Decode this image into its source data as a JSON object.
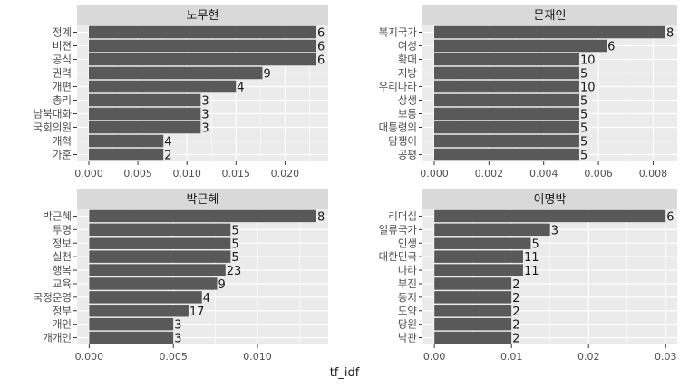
{
  "chart_data": {
    "type": "bar",
    "orientation": "horizontal",
    "xlabel": "tf_idf",
    "colors": {
      "bar": "#595959",
      "panel": "#ebebeb",
      "strip": "#d9d9d9",
      "grid": "#ffffff"
    },
    "facets": [
      {
        "name": "노무현",
        "categories": [
          "정계",
          "비젼",
          "공식",
          "권력",
          "개편",
          "총리",
          "남북대화",
          "국회의원",
          "개혁",
          "가훈"
        ],
        "values": [
          0.0232,
          0.0232,
          0.0232,
          0.0177,
          0.015,
          0.0114,
          0.0114,
          0.0114,
          0.0076,
          0.0076
        ],
        "labels": [
          "6",
          "6",
          "6",
          "9",
          "4",
          "3",
          "3",
          "3",
          "4",
          "2"
        ],
        "xlim": [
          -0.0012,
          0.0244
        ],
        "ticks": [
          "0.000",
          "0.005",
          "0.010",
          "0.015",
          "0.020"
        ],
        "tick_values": [
          0,
          0.005,
          0.01,
          0.015,
          0.02
        ]
      },
      {
        "name": "문재인",
        "categories": [
          "복지국가",
          "여성",
          "확대",
          "지방",
          "우리나라",
          "상생",
          "보통",
          "대통령의",
          "담쟁이",
          "공평"
        ],
        "values": [
          0.00845,
          0.0063,
          0.0053,
          0.0053,
          0.0053,
          0.0053,
          0.0053,
          0.0053,
          0.0053,
          0.0053
        ],
        "labels": [
          "8",
          "6",
          "10",
          "5",
          "10",
          "5",
          "5",
          "5",
          "5",
          "5"
        ],
        "xlim": [
          -0.00043,
          0.00888
        ],
        "ticks": [
          "0.000",
          "0.002",
          "0.004",
          "0.006",
          "0.008"
        ],
        "tick_values": [
          0,
          0.002,
          0.004,
          0.006,
          0.008
        ]
      },
      {
        "name": "박근혜",
        "categories": [
          "박근혜",
          "투명",
          "정보",
          "실천",
          "행복",
          "교육",
          "국정운영",
          "정부",
          "개인",
          "개개인"
        ],
        "values": [
          0.0135,
          0.0084,
          0.0084,
          0.0084,
          0.0081,
          0.0076,
          0.0067,
          0.0059,
          0.005,
          0.005
        ],
        "labels": [
          "8",
          "5",
          "5",
          "5",
          "23",
          "9",
          "4",
          "17",
          "3",
          "3"
        ],
        "xlim": [
          -0.00072,
          0.0142
        ],
        "ticks": [
          "0.000",
          "0.005",
          "0.010"
        ],
        "tick_values": [
          0,
          0.005,
          0.01
        ]
      },
      {
        "name": "이명박",
        "categories": [
          "리더십",
          "일류국가",
          "인생",
          "대한민국",
          "나라",
          "부진",
          "동지",
          "도약",
          "당원",
          "낙관"
        ],
        "values": [
          0.03,
          0.015,
          0.0125,
          0.0115,
          0.0115,
          0.01,
          0.01,
          0.01,
          0.01,
          0.01
        ],
        "labels": [
          "6",
          "3",
          "5",
          "11",
          "11",
          "2",
          "2",
          "2",
          "2",
          "2"
        ],
        "xlim": [
          -0.00155,
          0.0315
        ],
        "ticks": [
          "0.00",
          "0.01",
          "0.02",
          "0.03"
        ],
        "tick_values": [
          0,
          0.01,
          0.02,
          0.03
        ]
      }
    ]
  }
}
